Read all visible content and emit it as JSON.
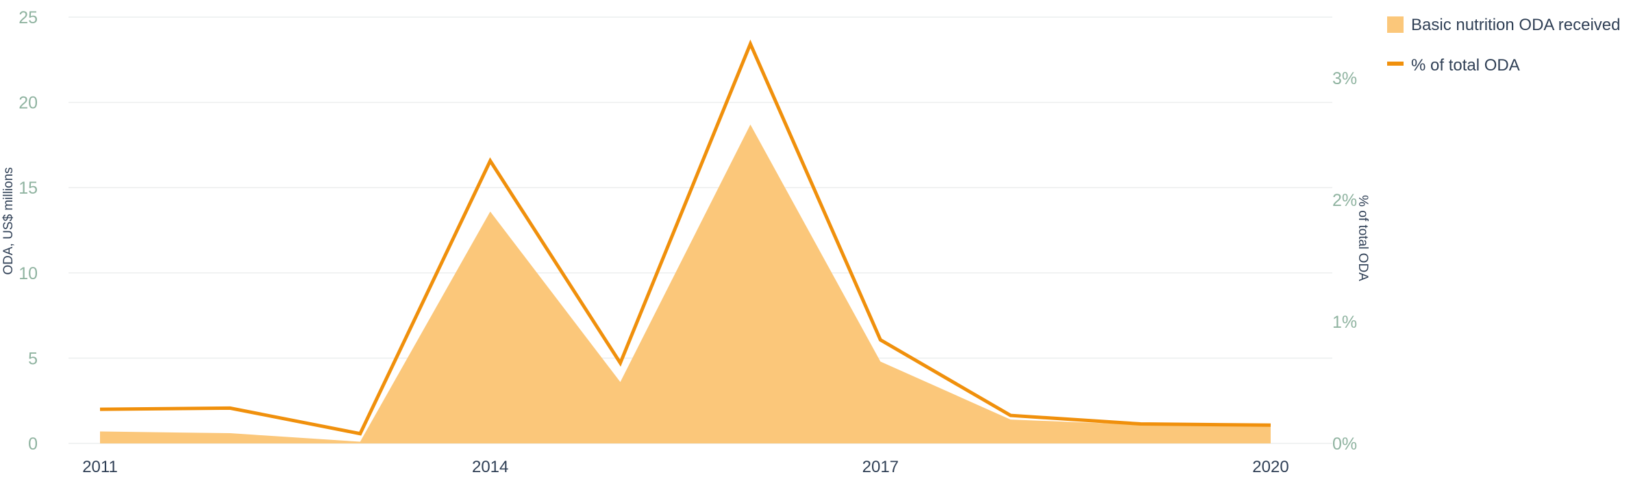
{
  "chart_data": {
    "type": "area",
    "x": [
      2011,
      2012,
      2013,
      2014,
      2015,
      2016,
      2017,
      2018,
      2019,
      2020
    ],
    "x_tick_labels": [
      "2011",
      "2014",
      "2017",
      "2020"
    ],
    "series": [
      {
        "name": "Basic nutrition ODA received",
        "kind": "area",
        "axis": "left",
        "color": "#fbc77a",
        "values": [
          0.7,
          0.6,
          0.1,
          13.6,
          3.6,
          18.7,
          4.8,
          1.4,
          1.1,
          1.0
        ]
      },
      {
        "name": "% of total ODA",
        "kind": "line",
        "axis": "right",
        "color": "#f0900c",
        "values": [
          0.28,
          0.29,
          0.08,
          2.32,
          0.66,
          3.28,
          0.85,
          0.23,
          0.16,
          0.15
        ]
      }
    ],
    "y_left": {
      "label": "ODA, US$ millions",
      "range": [
        0,
        25
      ],
      "ticks": [
        0,
        5,
        10,
        15,
        20,
        25
      ],
      "tick_labels": [
        "0",
        "5",
        "10",
        "15",
        "20",
        "25"
      ]
    },
    "y_right": {
      "label": "% of total ODA",
      "range": [
        0,
        3.5
      ],
      "ticks": [
        0,
        1,
        2,
        3
      ],
      "tick_labels": [
        "0%",
        "1%",
        "2%",
        "3%"
      ]
    },
    "grid": true,
    "legend_position": "top-right",
    "colors": {
      "tick_text": "#8fb3a0",
      "axis_text": "#2f3f55",
      "gridline": "#eceeee"
    }
  }
}
